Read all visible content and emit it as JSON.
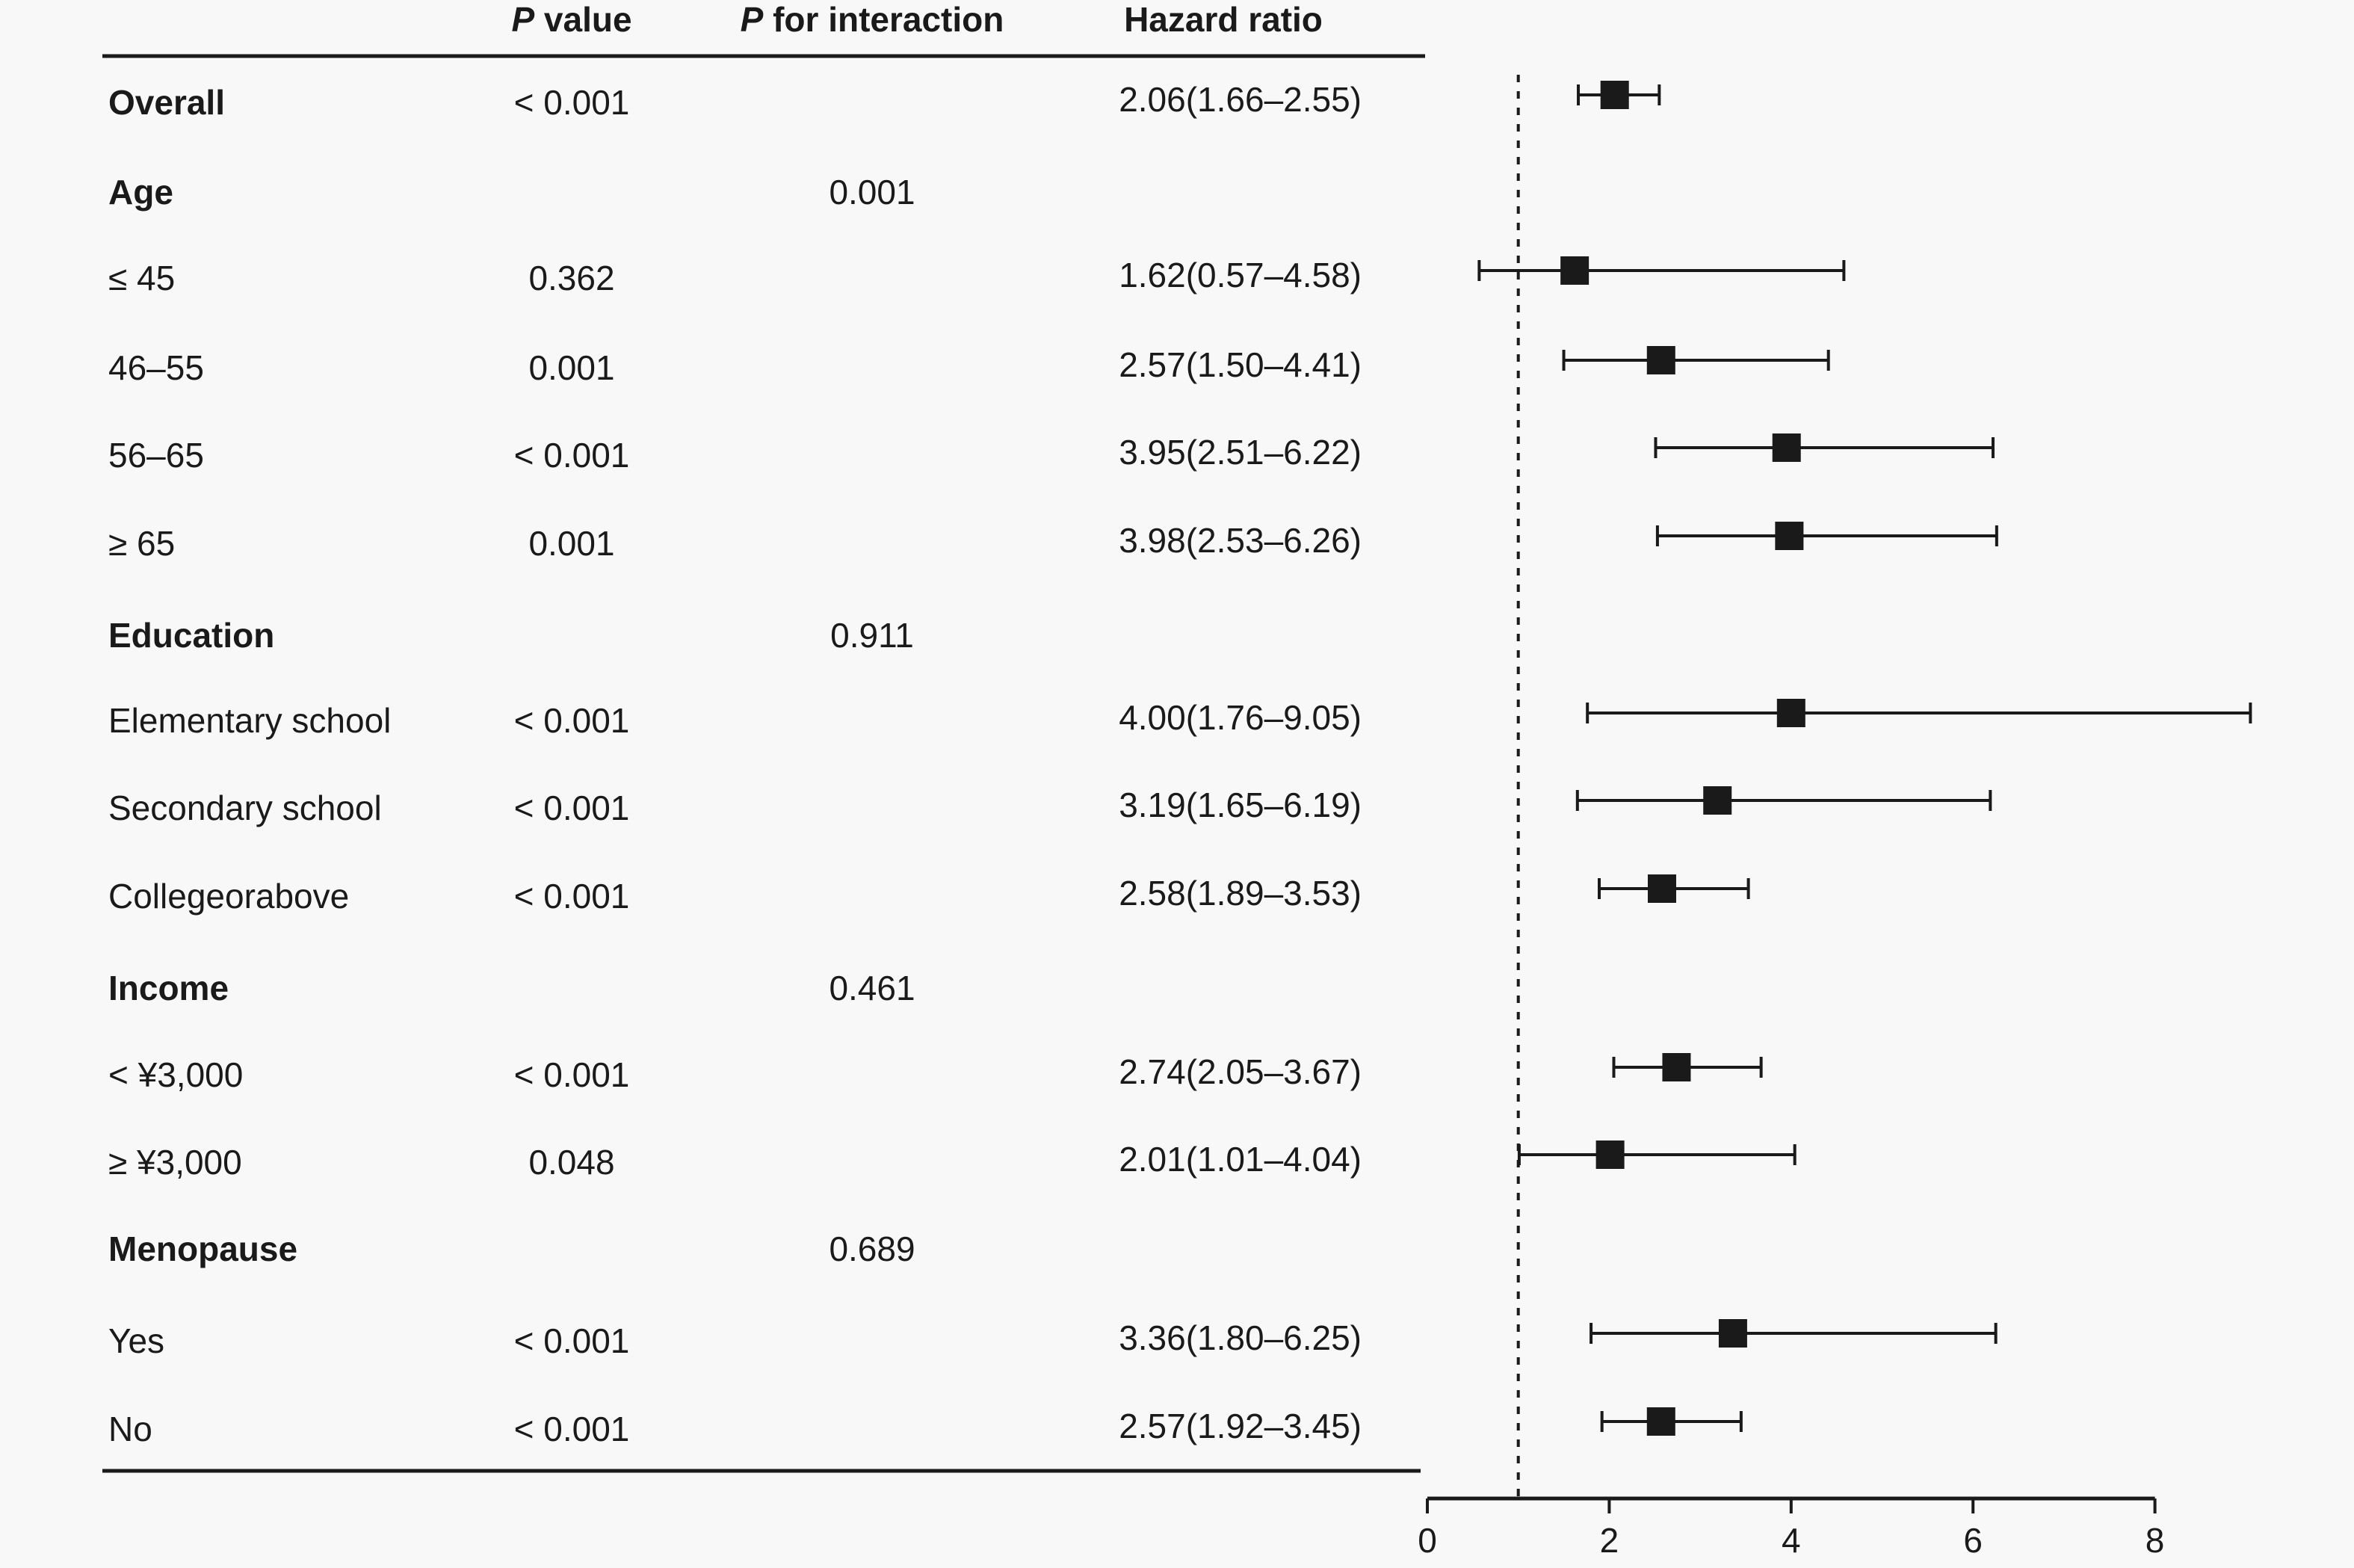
{
  "chart_data": {
    "type": "forest",
    "headers": {
      "pvalue": [
        "P",
        " value"
      ],
      "pinteraction": [
        "P",
        " for interaction"
      ],
      "hr": "Hazard ratio"
    },
    "reference_line": 1,
    "xlim": [
      0,
      8
    ],
    "xticks": [
      "0",
      "2",
      "4",
      "6",
      "8"
    ],
    "rows": [
      {
        "label": "Overall",
        "bold": true,
        "p": "< 0.001",
        "pint": "",
        "hr_text": "2.06(1.66–2.55)",
        "hr": 2.06,
        "lo": 1.66,
        "hi": 2.55
      },
      {
        "label": "Age",
        "bold": true,
        "p": "",
        "pint": "0.001",
        "hr_text": ""
      },
      {
        "label": "≤ 45",
        "bold": false,
        "p": "0.362",
        "pint": "",
        "hr_text": "1.62(0.57–4.58)",
        "hr": 1.62,
        "lo": 0.57,
        "hi": 4.58
      },
      {
        "label": "46–55",
        "bold": false,
        "p": "0.001",
        "pint": "",
        "hr_text": "2.57(1.50–4.41)",
        "hr": 2.57,
        "lo": 1.5,
        "hi": 4.41
      },
      {
        "label": "56–65",
        "bold": false,
        "p": "< 0.001",
        "pint": "",
        "hr_text": "3.95(2.51–6.22)",
        "hr": 3.95,
        "lo": 2.51,
        "hi": 6.22
      },
      {
        "label": "≥ 65",
        "bold": false,
        "p": "0.001",
        "pint": "",
        "hr_text": "3.98(2.53–6.26)",
        "hr": 3.98,
        "lo": 2.53,
        "hi": 6.26
      },
      {
        "label": "Education",
        "bold": true,
        "p": "",
        "pint": "0.911",
        "hr_text": ""
      },
      {
        "label": "Elementary school",
        "bold": false,
        "p": "< 0.001",
        "pint": "",
        "hr_text": "4.00(1.76–9.05)",
        "hr": 4.0,
        "lo": 1.76,
        "hi": 9.05
      },
      {
        "label": "Secondary school",
        "bold": false,
        "p": "< 0.001",
        "pint": "",
        "hr_text": "3.19(1.65–6.19)",
        "hr": 3.19,
        "lo": 1.65,
        "hi": 6.19
      },
      {
        "label": "Collegeorabove",
        "bold": false,
        "p": "< 0.001",
        "pint": "",
        "hr_text": "2.58(1.89–3.53)",
        "hr": 2.58,
        "lo": 1.89,
        "hi": 3.53
      },
      {
        "label": "Income",
        "bold": true,
        "p": "",
        "pint": "0.461",
        "hr_text": ""
      },
      {
        "label": "< ¥3,000",
        "bold": false,
        "p": "< 0.001",
        "pint": "",
        "hr_text": "2.74(2.05–3.67)",
        "hr": 2.74,
        "lo": 2.05,
        "hi": 3.67
      },
      {
        "label": "≥ ¥3,000",
        "bold": false,
        "p": "0.048",
        "pint": "",
        "hr_text": "2.01(1.01–4.04)",
        "hr": 2.01,
        "lo": 1.01,
        "hi": 4.04
      },
      {
        "label": "Menopause",
        "bold": true,
        "p": "",
        "pint": "0.689",
        "hr_text": ""
      },
      {
        "label": "Yes",
        "bold": false,
        "p": "< 0.001",
        "pint": "",
        "hr_text": "3.36(1.80–6.25)",
        "hr": 3.36,
        "lo": 1.8,
        "hi": 6.25
      },
      {
        "label": "No",
        "bold": false,
        "p": "< 0.001",
        "pint": "",
        "hr_text": "2.57(1.92–3.45)",
        "hr": 2.57,
        "lo": 1.92,
        "hi": 3.45
      }
    ],
    "colors": {
      "ink": "#1a1a1a",
      "background": "#f8f8f8"
    }
  }
}
